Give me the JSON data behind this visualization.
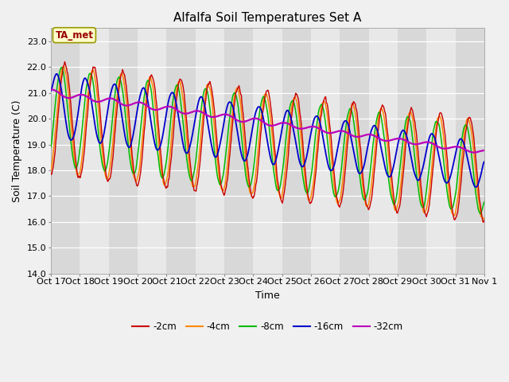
{
  "title": "Alfalfa Soil Temperatures Set A",
  "xlabel": "Time",
  "ylabel": "Soil Temperature (C)",
  "ylim": [
    14.0,
    23.5
  ],
  "xlim_labels": [
    "Oct 17",
    "Oct 18",
    "Oct 19",
    "Oct 20",
    "Oct 21",
    "Oct 22",
    "Oct 23",
    "Oct 24",
    "Oct 25",
    "Oct 26",
    "Oct 27",
    "Oct 28",
    "Oct 29",
    "Oct 30",
    "Oct 31",
    "Nov 1"
  ],
  "annotation": "TA_met",
  "annotation_color": "#990000",
  "annotation_bg": "#ffffcc",
  "annotation_edge": "#999900",
  "series_colors": {
    "-2cm": "#cc0000",
    "-4cm": "#ff8800",
    "-8cm": "#00bb00",
    "-16cm": "#0000cc",
    "-32cm": "#bb00bb"
  },
  "legend_entries": [
    "-2cm",
    "-4cm",
    "-8cm",
    "-16cm",
    "-32cm"
  ],
  "bg_band_light": "#e8e8e8",
  "bg_band_dark": "#d8d8d8",
  "grid_color": "#ffffff",
  "title_fontsize": 11,
  "label_fontsize": 9,
  "tick_fontsize": 8
}
